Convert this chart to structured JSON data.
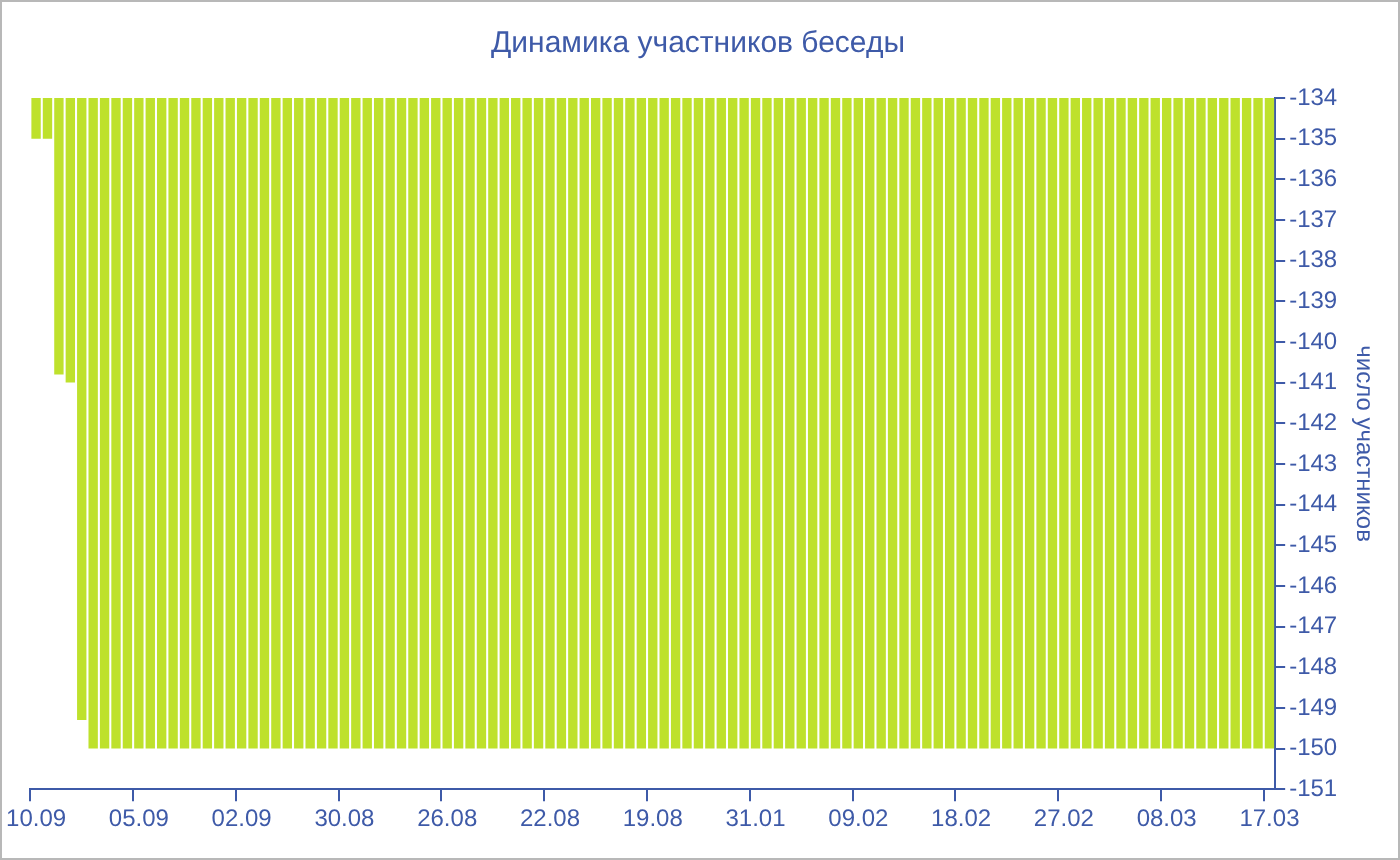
{
  "chart_data": {
    "type": "bar",
    "title": "Динамика участников беседы",
    "ylabel": "число участников",
    "categories": [
      "10.09",
      null,
      null,
      null,
      null,
      null,
      null,
      null,
      null,
      "05.09",
      null,
      null,
      null,
      null,
      null,
      null,
      null,
      null,
      "02.09",
      null,
      null,
      null,
      null,
      null,
      null,
      null,
      null,
      "30.08",
      null,
      null,
      null,
      null,
      null,
      null,
      null,
      null,
      "26.08",
      null,
      null,
      null,
      null,
      null,
      null,
      null,
      null,
      "22.08",
      null,
      null,
      null,
      null,
      null,
      null,
      null,
      null,
      "19.08",
      null,
      null,
      null,
      null,
      null,
      null,
      null,
      null,
      "31.01",
      null,
      null,
      null,
      null,
      null,
      null,
      null,
      null,
      "09.02",
      null,
      null,
      null,
      null,
      null,
      null,
      null,
      null,
      "18.02",
      null,
      null,
      null,
      null,
      null,
      null,
      null,
      null,
      "27.02",
      null,
      null,
      null,
      null,
      null,
      null,
      null,
      null,
      "08.03",
      null,
      null,
      null,
      null,
      null,
      null,
      null,
      null,
      "17.03"
    ],
    "series": [
      {
        "color": "#bee12c",
        "values": [
          -135,
          -135,
          -140.8,
          -141,
          -149.3,
          -150,
          -150,
          -150,
          -150,
          -150,
          -150,
          -150,
          -150,
          -150,
          -150,
          -150,
          -150,
          -150,
          -150,
          -150,
          -150,
          -150,
          -150,
          -150,
          -150,
          -150,
          -150,
          -150,
          -150,
          -150,
          -150,
          -150,
          -150,
          -150,
          -150,
          -150,
          -150,
          -150,
          -150,
          -150,
          -150,
          -150,
          -150,
          -150,
          -150,
          -150,
          -150,
          -150,
          -150,
          -150,
          -150,
          -150,
          -150,
          -150,
          -150,
          -150,
          -150,
          -150,
          -150,
          -150,
          -150,
          -150,
          -150,
          -150,
          -150,
          -150,
          -150,
          -150,
          -150,
          -150,
          -150,
          -150,
          -150,
          -150,
          -150,
          -150,
          -150,
          -150,
          -150,
          -150,
          -150,
          -150,
          -150,
          -150,
          -150,
          -150,
          -150,
          -150,
          -150,
          -150,
          -150,
          -150,
          -150,
          -150,
          -150,
          -150,
          -150,
          -150,
          -150,
          -150,
          -150,
          -150,
          -150,
          -150,
          -150,
          -150,
          -150,
          -150,
          -150
        ]
      }
    ],
    "ylim": [
      -151,
      -134
    ],
    "yticks": [
      -134,
      -135,
      -136,
      -137,
      -138,
      -139,
      -140,
      -141,
      -142,
      -143,
      -144,
      -145,
      -146,
      -147,
      -148,
      -149,
      -150,
      -151
    ],
    "legend": false
  }
}
